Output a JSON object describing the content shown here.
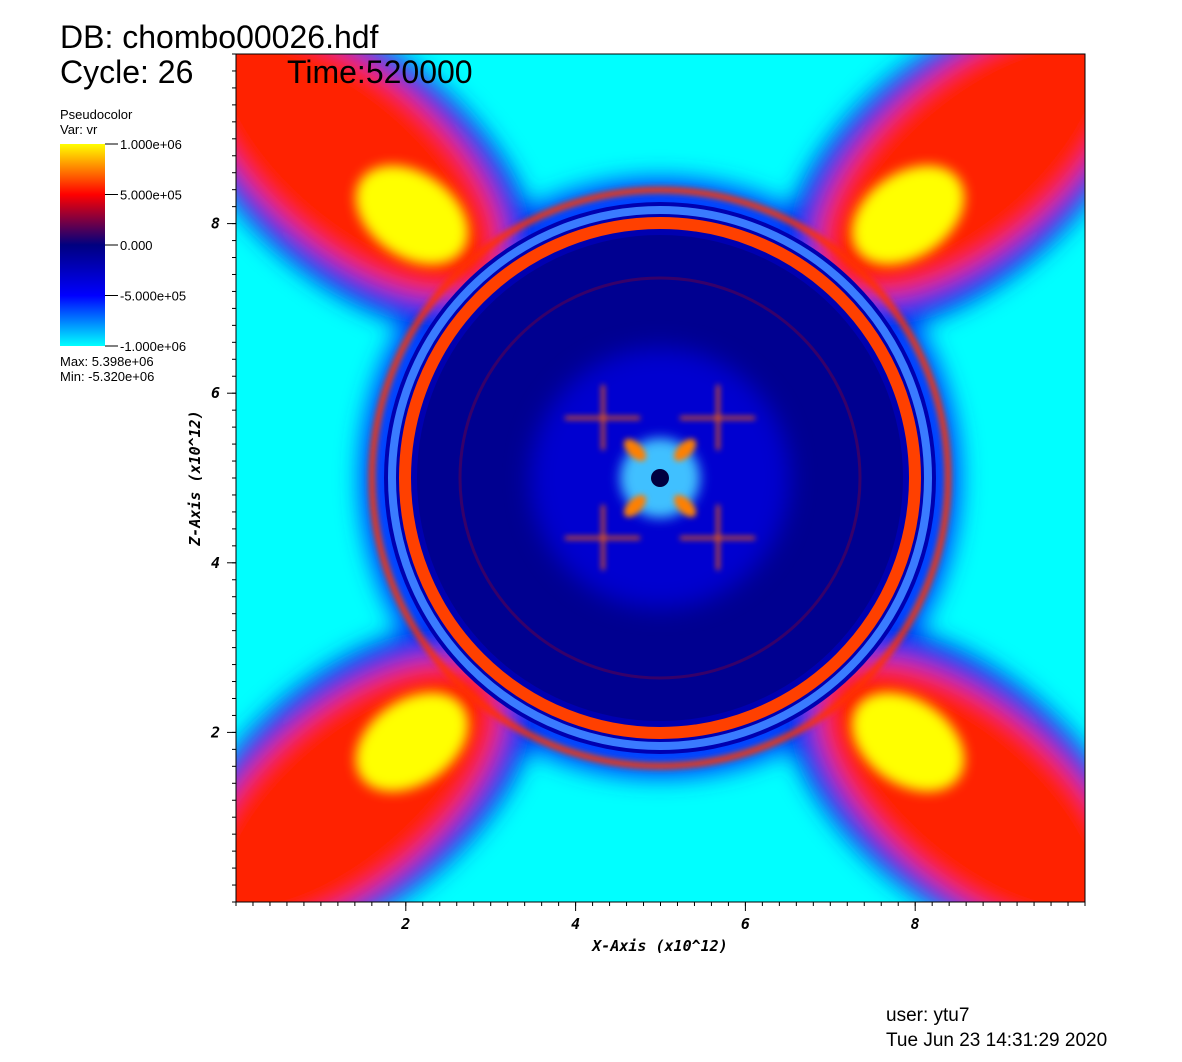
{
  "chart_data": {
    "type": "pseudocolor",
    "title": "DB: chombo00026.hdf",
    "cycle": "Cycle: 26",
    "time": "Time:520000",
    "legend_title": "Pseudocolor",
    "variable": "Var: vr",
    "colormap": [
      "#ffff00",
      "#ff0000",
      "#000080",
      "#0000ff",
      "#00ffff"
    ],
    "clim": [
      -1000000,
      1000000
    ],
    "cticks": [
      {
        "value": 1000000,
        "label": "1.000e+06"
      },
      {
        "value": 500000,
        "label": "5.000e+05"
      },
      {
        "value": 0,
        "label": "0.000"
      },
      {
        "value": -500000,
        "label": "-5.000e+05"
      },
      {
        "value": -1000000,
        "label": "-1.000e+06"
      }
    ],
    "max_label": "Max:  5.398e+06",
    "min_label": "Min: -5.320e+06",
    "xlabel": "X-Axis (x10^12)",
    "ylabel": "Z-Axis (x10^12)",
    "xlim": [
      0,
      10
    ],
    "ylim": [
      0,
      10
    ],
    "xticks": [
      2,
      4,
      6,
      8
    ],
    "yticks": [
      2,
      4,
      6,
      8
    ],
    "user": "user: ytu7",
    "date": "Tue Jun 23 14:31:29 2020"
  }
}
